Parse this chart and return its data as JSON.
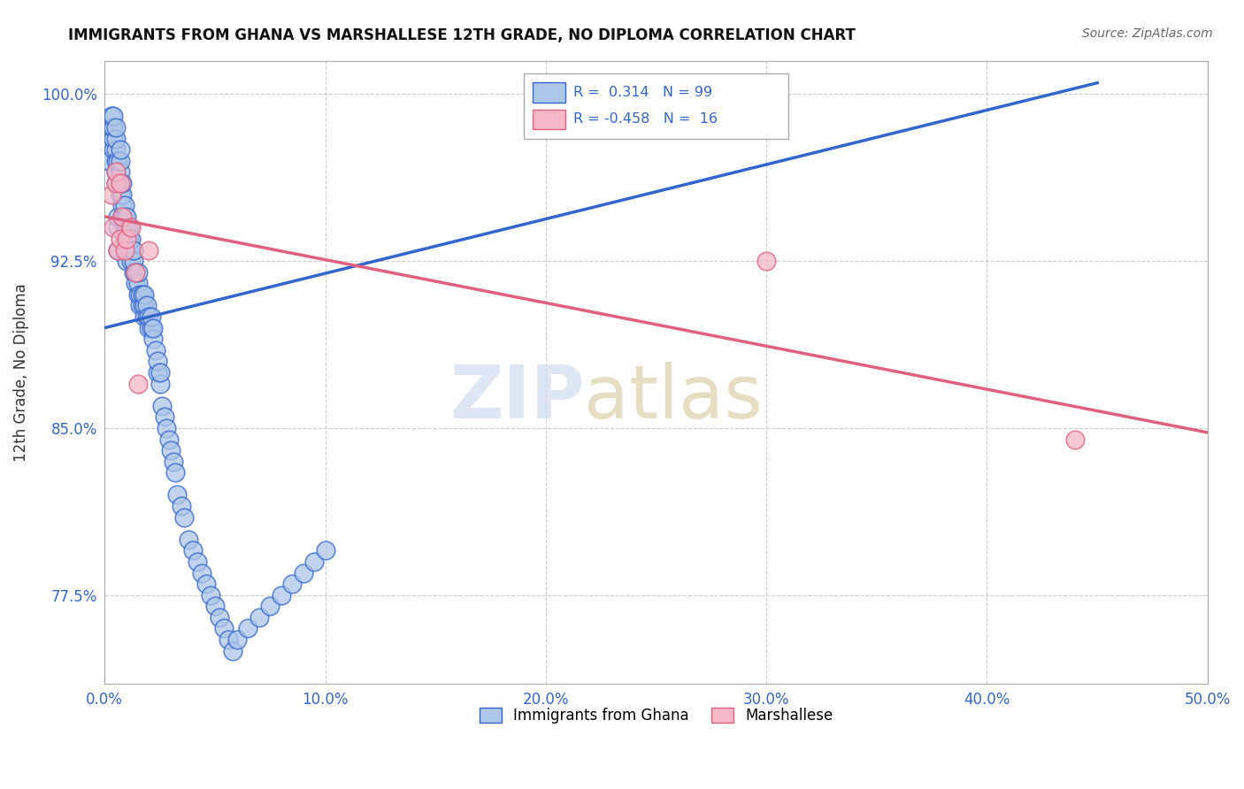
{
  "title": "IMMIGRANTS FROM GHANA VS MARSHALLESE 12TH GRADE, NO DIPLOMA CORRELATION CHART",
  "source": "Source: ZipAtlas.com",
  "ylabel": "12th Grade, No Diploma",
  "xlabel": "",
  "xlim": [
    0.0,
    0.5
  ],
  "ylim": [
    0.735,
    1.015
  ],
  "xtick_labels": [
    "0.0%",
    "10.0%",
    "20.0%",
    "30.0%",
    "40.0%",
    "50.0%"
  ],
  "xtick_vals": [
    0.0,
    0.1,
    0.2,
    0.3,
    0.4,
    0.5
  ],
  "ytick_labels": [
    "77.5%",
    "85.0%",
    "92.5%",
    "100.0%"
  ],
  "ytick_vals": [
    0.775,
    0.85,
    0.925,
    1.0
  ],
  "ghana_R": 0.314,
  "ghana_N": 99,
  "marshallese_R": -0.458,
  "marshallese_N": 16,
  "ghana_color": "#aec6e8",
  "marshallese_color": "#f4b8c8",
  "ghana_line_color": "#3366cc",
  "marshallese_line_color": "#e06080",
  "ghana_x": [
    0.002,
    0.003,
    0.003,
    0.004,
    0.004,
    0.004,
    0.004,
    0.005,
    0.005,
    0.005,
    0.005,
    0.005,
    0.005,
    0.006,
    0.006,
    0.006,
    0.006,
    0.007,
    0.007,
    0.007,
    0.007,
    0.007,
    0.008,
    0.008,
    0.008,
    0.008,
    0.009,
    0.009,
    0.009,
    0.009,
    0.01,
    0.01,
    0.01,
    0.01,
    0.01,
    0.011,
    0.011,
    0.011,
    0.012,
    0.012,
    0.012,
    0.013,
    0.013,
    0.013,
    0.014,
    0.014,
    0.015,
    0.015,
    0.015,
    0.016,
    0.016,
    0.017,
    0.017,
    0.018,
    0.018,
    0.018,
    0.019,
    0.019,
    0.02,
    0.02,
    0.021,
    0.021,
    0.022,
    0.022,
    0.023,
    0.024,
    0.024,
    0.025,
    0.025,
    0.026,
    0.027,
    0.028,
    0.029,
    0.03,
    0.031,
    0.032,
    0.033,
    0.035,
    0.036,
    0.038,
    0.04,
    0.042,
    0.044,
    0.046,
    0.048,
    0.05,
    0.052,
    0.054,
    0.056,
    0.058,
    0.06,
    0.065,
    0.07,
    0.075,
    0.08,
    0.085,
    0.09,
    0.095,
    0.1
  ],
  "ghana_y": [
    0.97,
    0.985,
    0.99,
    0.975,
    0.98,
    0.985,
    0.99,
    0.96,
    0.965,
    0.97,
    0.975,
    0.98,
    0.985,
    0.93,
    0.94,
    0.945,
    0.97,
    0.955,
    0.96,
    0.965,
    0.97,
    0.975,
    0.945,
    0.95,
    0.955,
    0.96,
    0.935,
    0.94,
    0.945,
    0.95,
    0.925,
    0.93,
    0.935,
    0.94,
    0.945,
    0.93,
    0.935,
    0.94,
    0.925,
    0.93,
    0.935,
    0.92,
    0.925,
    0.93,
    0.915,
    0.92,
    0.91,
    0.915,
    0.92,
    0.905,
    0.91,
    0.905,
    0.91,
    0.9,
    0.905,
    0.91,
    0.9,
    0.905,
    0.895,
    0.9,
    0.895,
    0.9,
    0.89,
    0.895,
    0.885,
    0.875,
    0.88,
    0.87,
    0.875,
    0.86,
    0.855,
    0.85,
    0.845,
    0.84,
    0.835,
    0.83,
    0.82,
    0.815,
    0.81,
    0.8,
    0.795,
    0.79,
    0.785,
    0.78,
    0.775,
    0.77,
    0.765,
    0.76,
    0.755,
    0.75,
    0.755,
    0.76,
    0.765,
    0.77,
    0.775,
    0.78,
    0.785,
    0.79,
    0.795
  ],
  "marshallese_x": [
    0.003,
    0.004,
    0.005,
    0.005,
    0.006,
    0.007,
    0.007,
    0.008,
    0.009,
    0.01,
    0.012,
    0.014,
    0.015,
    0.02,
    0.3,
    0.44
  ],
  "marshallese_y": [
    0.955,
    0.94,
    0.96,
    0.965,
    0.93,
    0.935,
    0.96,
    0.945,
    0.93,
    0.935,
    0.94,
    0.92,
    0.87,
    0.93,
    0.925,
    0.845
  ],
  "ghana_line_x0": 0.0,
  "ghana_line_y0": 0.895,
  "ghana_line_x1": 0.45,
  "ghana_line_y1": 1.005,
  "marsh_line_x0": 0.0,
  "marsh_line_y0": 0.945,
  "marsh_line_x1": 0.5,
  "marsh_line_y1": 0.848
}
